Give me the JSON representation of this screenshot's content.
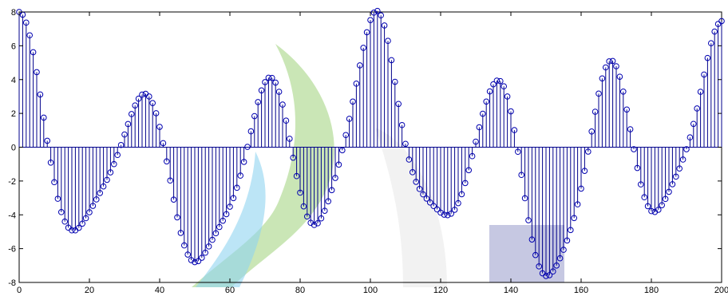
{
  "chart_data": {
    "type": "stem",
    "title": "",
    "xlabel": "",
    "ylabel": "",
    "xlim": [
      0,
      200
    ],
    "ylim": [
      -8,
      8
    ],
    "xticks": [
      0,
      20,
      40,
      60,
      80,
      100,
      120,
      140,
      160,
      180,
      200
    ],
    "yticks": [
      -8,
      -6,
      -4,
      -2,
      0,
      2,
      4,
      6,
      8
    ],
    "grid": false,
    "colors": {
      "stem": "#00008b",
      "marker": "#0000b0",
      "axes": "#000000",
      "background": "#ffffff",
      "watermark_blue": "#8fd3f0",
      "watermark_green": "#9fd27a",
      "watermark_gray": "#d9d9d9",
      "watermark_navy": "#8e91c6"
    },
    "series": [
      {
        "marker": "circle",
        "x": [
          0,
          1,
          2,
          3,
          4,
          5,
          6,
          7,
          8,
          9,
          10,
          11,
          12,
          13,
          14,
          15,
          16,
          17,
          18,
          19,
          20,
          21,
          22,
          23,
          24,
          25,
          26,
          27,
          28,
          29,
          30,
          31,
          32,
          33,
          34,
          35,
          36,
          37,
          38,
          39,
          40,
          41,
          42,
          43,
          44,
          45,
          46,
          47,
          48,
          49,
          50,
          51,
          52,
          53,
          54,
          55,
          56,
          57,
          58,
          59,
          60,
          61,
          62,
          63,
          64,
          65,
          66,
          67,
          68,
          69,
          70,
          71,
          72,
          73,
          74,
          75,
          76,
          77,
          78,
          79,
          80,
          81,
          82,
          83,
          84,
          85,
          86,
          87,
          88,
          89,
          90,
          91,
          92,
          93,
          94,
          95,
          96,
          97,
          98,
          99,
          100,
          101,
          102,
          103,
          104,
          105,
          106,
          107,
          108,
          109,
          110,
          111,
          112,
          113,
          114,
          115,
          116,
          117,
          118,
          119,
          120,
          121,
          122,
          123,
          124,
          125,
          126,
          127,
          128,
          129,
          130,
          131,
          132,
          133,
          134,
          135,
          136,
          137,
          138,
          139,
          140,
          141,
          142,
          143,
          144,
          145,
          146,
          147,
          148,
          149,
          150,
          151,
          152,
          153,
          154,
          155,
          156,
          157,
          158,
          159,
          160,
          161,
          162,
          163,
          164,
          165,
          166,
          167,
          168,
          169,
          170,
          171,
          172,
          173,
          174,
          175,
          176,
          177,
          178,
          179,
          180,
          181,
          182,
          183,
          184,
          185,
          186,
          187,
          188,
          189,
          190,
          191,
          192,
          193,
          194,
          195,
          196,
          197,
          198,
          199,
          200
        ],
        "y": [
          8,
          7.84,
          7.37,
          6.62,
          5.62,
          4.44,
          3.12,
          1.75,
          0.38,
          -0.91,
          -2.07,
          -3.05,
          -3.84,
          -4.4,
          -4.76,
          -4.92,
          -4.92,
          -4.77,
          -4.52,
          -4.2,
          -3.85,
          -3.47,
          -3.09,
          -2.71,
          -2.32,
          -1.93,
          -1.49,
          -1.0,
          -0.46,
          0.13,
          0.75,
          1.37,
          1.96,
          2.47,
          2.87,
          3.11,
          3.16,
          3.0,
          2.61,
          2.01,
          1.2,
          0.24,
          -0.84,
          -1.97,
          -3.1,
          -4.15,
          -5.07,
          -5.81,
          -6.35,
          -6.68,
          -6.8,
          -6.74,
          -6.54,
          -6.24,
          -5.87,
          -5.48,
          -5.09,
          -4.72,
          -4.35,
          -3.96,
          -3.52,
          -3.01,
          -2.4,
          -1.68,
          -0.87,
          0.02,
          0.94,
          1.84,
          2.67,
          3.36,
          3.85,
          4.11,
          4.1,
          3.82,
          3.28,
          2.52,
          1.57,
          0.5,
          -0.62,
          -1.71,
          -2.69,
          -3.5,
          -4.1,
          -4.47,
          -4.6,
          -4.5,
          -4.21,
          -3.76,
          -3.2,
          -2.54,
          -1.82,
          -1.03,
          -0.18,
          0.72,
          1.68,
          2.7,
          3.76,
          4.84,
          5.88,
          6.8,
          7.52,
          7.96,
          8.06,
          7.8,
          7.2,
          6.29,
          5.15,
          3.87,
          2.56,
          1.31,
          0.2,
          -0.73,
          -1.48,
          -2.05,
          -2.47,
          -2.79,
          -3.04,
          -3.27,
          -3.48,
          -3.68,
          -3.87,
          -3.99,
          -4.02,
          -3.93,
          -3.7,
          -3.31,
          -2.78,
          -2.12,
          -1.36,
          -0.53,
          0.33,
          1.18,
          1.98,
          2.7,
          3.3,
          3.72,
          3.94,
          3.91,
          3.6,
          3.0,
          2.12,
          1.01,
          -0.27,
          -1.64,
          -3.02,
          -4.32,
          -5.46,
          -6.38,
          -7.05,
          -7.46,
          -7.62,
          -7.57,
          -7.35,
          -7.0,
          -6.57,
          -6.07,
          -5.52,
          -4.9,
          -4.19,
          -3.38,
          -2.45,
          -1.4,
          -0.26,
          0.93,
          2.1,
          3.17,
          4.07,
          4.72,
          5.08,
          5.1,
          4.79,
          4.17,
          3.29,
          2.23,
          1.06,
          -0.12,
          -1.23,
          -2.2,
          -2.96,
          -3.49,
          -3.78,
          -3.83,
          -3.7,
          -3.43,
          -3.06,
          -2.64,
          -2.19,
          -1.74,
          -1.26,
          -0.73,
          -0.12,
          0.58,
          1.38,
          2.29,
          3.28,
          4.3,
          5.28,
          6.15,
          6.84,
          7.29,
          7.46
        ]
      }
    ]
  }
}
